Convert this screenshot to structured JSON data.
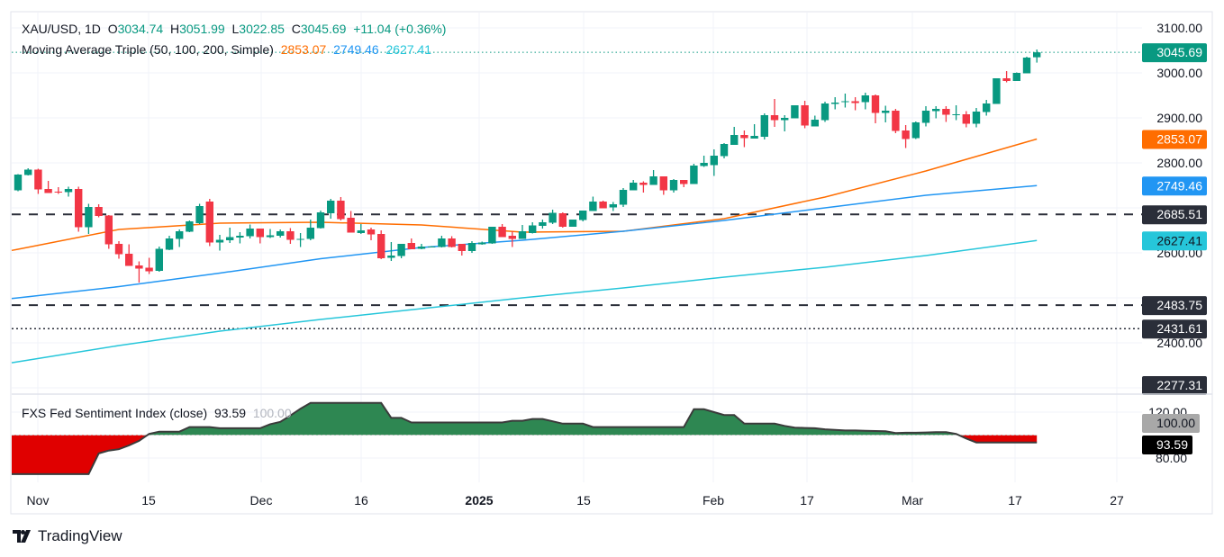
{
  "header": {
    "symbol": "XAU/USD, 1D",
    "o_label": "O",
    "o_value": "3034.74",
    "h_label": "H",
    "h_value": "3051.99",
    "l_label": "L",
    "l_value": "3022.85",
    "c_label": "C",
    "c_value": "3045.69",
    "change": "+11.04 (+0.36%)",
    "ma_label": "Moving Average Triple (50, 100, 200, Simple)",
    "ma50_value": "2853.07",
    "ma100_value": "2749.46",
    "ma200_value": "2627.41",
    "indicator_label": "FXS Fed Sentiment Index (close)",
    "indicator_value": "93.59",
    "indicator_base": "100.00"
  },
  "brand": {
    "name": "TradingView"
  },
  "colors": {
    "up": "#089981",
    "down": "#f23645",
    "ma50": "#ff6d00",
    "ma100": "#2196f3",
    "ma200": "#26c6da",
    "sentiment_above": "#2e8752",
    "sentiment_below": "#e00000",
    "level_label": "#2a2e39"
  },
  "chart_data": [
    {
      "type": "candlestick",
      "title": "XAU/USD, 1D",
      "ylim": [
        2250,
        3120
      ],
      "y_ticks": [
        "3100.00",
        "3000.00",
        "2900.00",
        "2800.00",
        "2600.00",
        "2400.00"
      ],
      "y_tick_values": [
        3100,
        3000,
        2900,
        2800,
        2600,
        2400
      ],
      "x_ticks": [
        "Nov",
        "15",
        "Dec",
        "16",
        "2025",
        "15",
        "Feb",
        "17",
        "Mar",
        "17",
        "27"
      ],
      "grid": true,
      "ohlc": [
        [
          2739,
          2775,
          2737,
          2774
        ],
        [
          2773,
          2788,
          2772,
          2785
        ],
        [
          2785,
          2787,
          2731,
          2741
        ],
        [
          2742,
          2760,
          2733,
          2733
        ],
        [
          2736,
          2746,
          2731,
          2735
        ],
        [
          2735,
          2747,
          2725,
          2742
        ],
        [
          2742,
          2747,
          2647,
          2657
        ],
        [
          2657,
          2709,
          2642,
          2702
        ],
        [
          2702,
          2708,
          2679,
          2682
        ],
        [
          2683,
          2684,
          2609,
          2619
        ],
        [
          2620,
          2626,
          2587,
          2597
        ],
        [
          2598,
          2619,
          2571,
          2571
        ],
        [
          2572,
          2581,
          2534,
          2565
        ],
        [
          2567,
          2589,
          2553,
          2559
        ],
        [
          2560,
          2614,
          2558,
          2609
        ],
        [
          2607,
          2638,
          2606,
          2632
        ],
        [
          2631,
          2652,
          2613,
          2648
        ],
        [
          2647,
          2672,
          2646,
          2670
        ],
        [
          2666,
          2709,
          2664,
          2704
        ],
        [
          2714,
          2720,
          2615,
          2623
        ],
        [
          2623,
          2640,
          2605,
          2629
        ],
        [
          2628,
          2656,
          2622,
          2635
        ],
        [
          2634,
          2646,
          2621,
          2638
        ],
        [
          2637,
          2663,
          2632,
          2654
        ],
        [
          2654,
          2654,
          2621,
          2635
        ],
        [
          2635,
          2653,
          2633,
          2639
        ],
        [
          2638,
          2652,
          2634,
          2648
        ],
        [
          2648,
          2655,
          2620,
          2629
        ],
        [
          2629,
          2644,
          2613,
          2631
        ],
        [
          2631,
          2674,
          2628,
          2656
        ],
        [
          2655,
          2694,
          2654,
          2690
        ],
        [
          2688,
          2720,
          2676,
          2716
        ],
        [
          2716,
          2724,
          2672,
          2675
        ],
        [
          2678,
          2693,
          2645,
          2645
        ],
        [
          2644,
          2664,
          2642,
          2650
        ],
        [
          2652,
          2656,
          2628,
          2641
        ],
        [
          2642,
          2650,
          2586,
          2588
        ],
        [
          2589,
          2624,
          2582,
          2594
        ],
        [
          2593,
          2620,
          2588,
          2620
        ],
        [
          2622,
          2632,
          2608,
          2608
        ],
        [
          2609,
          2620,
          2608,
          2614
        ],
        [
          2613,
          2615,
          2612,
          2614
        ],
        [
          2613,
          2638,
          2612,
          2632
        ],
        [
          2632,
          2637,
          2612,
          2613
        ],
        [
          2620,
          2620,
          2594,
          2604
        ],
        [
          2604,
          2626,
          2600,
          2622
        ],
        [
          2619,
          2625,
          2618,
          2623
        ],
        [
          2621,
          2658,
          2620,
          2658
        ],
        [
          2658,
          2664,
          2635,
          2635
        ],
        [
          2638,
          2648,
          2613,
          2631
        ],
        [
          2631,
          2662,
          2631,
          2648
        ],
        [
          2644,
          2668,
          2643,
          2661
        ],
        [
          2660,
          2674,
          2654,
          2668
        ],
        [
          2667,
          2696,
          2664,
          2689
        ],
        [
          2688,
          2690,
          2656,
          2658
        ],
        [
          2658,
          2674,
          2658,
          2674
        ],
        [
          2673,
          2694,
          2670,
          2694
        ],
        [
          2693,
          2725,
          2693,
          2714
        ],
        [
          2714,
          2716,
          2699,
          2699
        ],
        [
          2701,
          2713,
          2693,
          2708
        ],
        [
          2707,
          2744,
          2702,
          2740
        ],
        [
          2739,
          2762,
          2739,
          2756
        ],
        [
          2756,
          2759,
          2734,
          2751
        ],
        [
          2751,
          2784,
          2751,
          2770
        ],
        [
          2770,
          2770,
          2729,
          2739
        ],
        [
          2739,
          2764,
          2734,
          2762
        ],
        [
          2762,
          2762,
          2746,
          2753
        ],
        [
          2753,
          2798,
          2753,
          2794
        ],
        [
          2793,
          2816,
          2791,
          2800
        ],
        [
          2795,
          2830,
          2771,
          2816
        ],
        [
          2815,
          2844,
          2810,
          2842
        ],
        [
          2840,
          2880,
          2840,
          2862
        ],
        [
          2862,
          2872,
          2835,
          2855
        ],
        [
          2854,
          2886,
          2854,
          2860
        ],
        [
          2858,
          2910,
          2852,
          2906
        ],
        [
          2906,
          2942,
          2880,
          2895
        ],
        [
          2895,
          2906,
          2870,
          2900
        ],
        [
          2899,
          2928,
          2899,
          2928
        ],
        [
          2928,
          2938,
          2877,
          2883
        ],
        [
          2881,
          2905,
          2881,
          2896
        ],
        [
          2895,
          2936,
          2891,
          2932
        ],
        [
          2931,
          2946,
          2919,
          2934
        ],
        [
          2936,
          2954,
          2923,
          2937
        ],
        [
          2937,
          2946,
          2917,
          2933
        ],
        [
          2935,
          2956,
          2919,
          2950
        ],
        [
          2950,
          2952,
          2888,
          2911
        ],
        [
          2911,
          2927,
          2890,
          2916
        ],
        [
          2916,
          2920,
          2866,
          2871
        ],
        [
          2872,
          2884,
          2833,
          2853
        ],
        [
          2855,
          2892,
          2853,
          2890
        ],
        [
          2889,
          2926,
          2881,
          2916
        ],
        [
          2915,
          2926,
          2899,
          2920
        ],
        [
          2920,
          2926,
          2891,
          2907
        ],
        [
          2906,
          2928,
          2895,
          2908
        ],
        [
          2908,
          2915,
          2879,
          2887
        ],
        [
          2887,
          2922,
          2879,
          2914
        ],
        [
          2913,
          2940,
          2905,
          2932
        ],
        [
          2931,
          2988,
          2931,
          2988
        ],
        [
          2988,
          3004,
          2979,
          2982
        ],
        [
          2982,
          3001,
          2982,
          3000
        ],
        [
          2999,
          3036,
          2999,
          3034
        ],
        [
          3034.74,
          3051.99,
          3022.85,
          3045.69
        ]
      ],
      "moving_averages": [
        {
          "name": "MA 50",
          "value": 2853.07,
          "sample_bar": [
            0,
            10,
            20,
            30,
            40,
            50,
            60,
            70,
            80,
            90,
            101
          ],
          "values": [
            2608,
            2652,
            2666,
            2668,
            2662,
            2646,
            2648,
            2676,
            2724,
            2782,
            2853.07
          ]
        },
        {
          "name": "MA 100",
          "value": 2749.46,
          "sample_bar": [
            0,
            10,
            20,
            30,
            40,
            50,
            60,
            70,
            80,
            90,
            101
          ],
          "values": [
            2500,
            2525,
            2555,
            2587,
            2612,
            2628,
            2648,
            2672,
            2700,
            2728,
            2749.46
          ]
        },
        {
          "name": "MA 200",
          "value": 2627.41,
          "sample_bar": [
            0,
            10,
            20,
            30,
            40,
            50,
            60,
            70,
            80,
            90,
            101
          ],
          "values": [
            2358,
            2394,
            2426,
            2452,
            2476,
            2500,
            2522,
            2546,
            2568,
            2594,
            2627.41
          ]
        }
      ],
      "horizontal_levels": [
        {
          "value": 2685.51,
          "label": "2685.51",
          "style": "dashed"
        },
        {
          "value": 2483.75,
          "label": "2483.75",
          "style": "dashed"
        },
        {
          "value": 2431.61,
          "label": "2431.61",
          "style": "dotted"
        },
        {
          "value": 2277.31,
          "label": "2277.31",
          "style": "none"
        }
      ],
      "last_price": {
        "value": 3045.69,
        "label": "3045.69"
      },
      "ma_labels": [
        "2853.07",
        "2749.46",
        "2627.41"
      ]
    },
    {
      "type": "area",
      "title": "FXS Fed Sentiment Index (close)",
      "ylim": [
        62,
        132
      ],
      "baseline": 100,
      "y_ticks": [
        "120.00",
        "80.00"
      ],
      "y_tick_values": [
        120,
        80
      ],
      "baseline_label": "100.00",
      "last_label": "93.59",
      "values": [
        66,
        66,
        66,
        66,
        66,
        66,
        66,
        66,
        84,
        86.5,
        87.7,
        91,
        95,
        101,
        103,
        103,
        103,
        107,
        107,
        107,
        106,
        106,
        106,
        106,
        106,
        109.5,
        111.5,
        117,
        123,
        128,
        128,
        128,
        128,
        128,
        128,
        128,
        128,
        115,
        115,
        111,
        111,
        111,
        111,
        111,
        111,
        111,
        111,
        111,
        111,
        112.5,
        112.5,
        114,
        114,
        112,
        110,
        110,
        110,
        107,
        107,
        107,
        107,
        107,
        107,
        107,
        107,
        107,
        107,
        122.5,
        122.5,
        120,
        117.5,
        117.5,
        110,
        110,
        110,
        110,
        108,
        106.5,
        106.2,
        106,
        105,
        104.5,
        104,
        104,
        103.8,
        103.5,
        103.3,
        101.8,
        102,
        102,
        102.3,
        102.5,
        102.5,
        101,
        97,
        93.6,
        93.6,
        93.6,
        93.6,
        93.6,
        93.6,
        93.59
      ]
    }
  ]
}
